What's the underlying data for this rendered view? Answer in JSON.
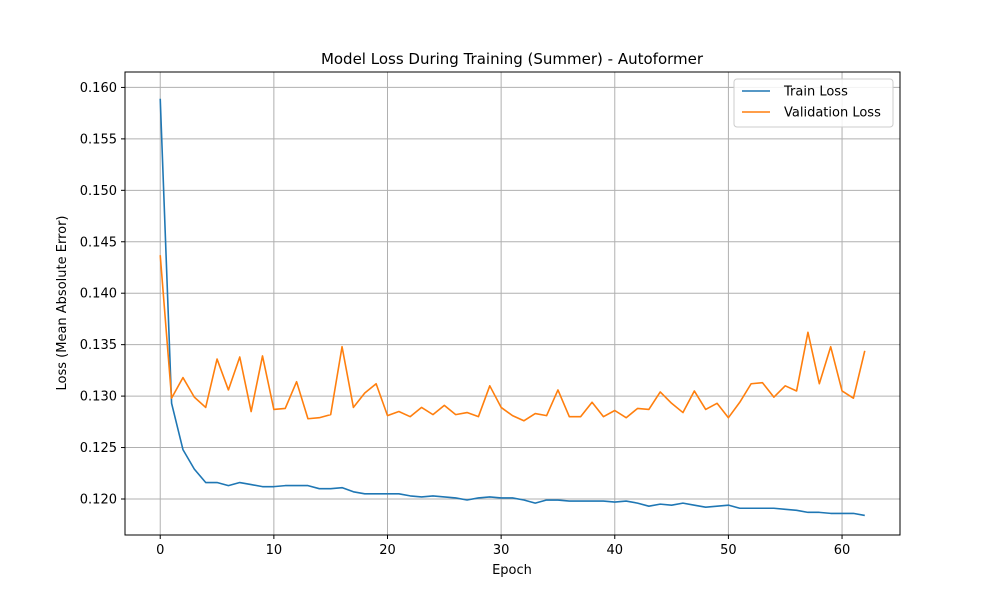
{
  "chart_data": {
    "type": "line",
    "title": "Model Loss During Training (Summer) - Autoformer",
    "xlabel": "Epoch",
    "ylabel": "Loss (Mean Absolute Error)",
    "xlim": [
      -3.1,
      65.1
    ],
    "ylim": [
      0.1165,
      0.1615
    ],
    "xticks": [
      0,
      10,
      20,
      30,
      40,
      50,
      60
    ],
    "yticks": [
      0.12,
      0.125,
      0.13,
      0.135,
      0.14,
      0.145,
      0.15,
      0.155,
      0.16
    ],
    "grid": true,
    "legend_position": "top-right",
    "x": [
      0,
      1,
      2,
      3,
      4,
      5,
      6,
      7,
      8,
      9,
      10,
      11,
      12,
      13,
      14,
      15,
      16,
      17,
      18,
      19,
      20,
      21,
      22,
      23,
      24,
      25,
      26,
      27,
      28,
      29,
      30,
      31,
      32,
      33,
      34,
      35,
      36,
      37,
      38,
      39,
      40,
      41,
      42,
      43,
      44,
      45,
      46,
      47,
      48,
      49,
      50,
      51,
      52,
      53,
      54,
      55,
      56,
      57,
      58,
      59,
      60,
      61,
      62
    ],
    "series": [
      {
        "name": "Train Loss",
        "color": "#1f77b4",
        "values": [
          0.1589,
          0.1293,
          0.1248,
          0.1229,
          0.1216,
          0.1216,
          0.1213,
          0.1216,
          0.1214,
          0.1212,
          0.1212,
          0.1213,
          0.1213,
          0.1213,
          0.121,
          0.121,
          0.1211,
          0.1207,
          0.1205,
          0.1205,
          0.1205,
          0.1205,
          0.1203,
          0.1202,
          0.1203,
          0.1202,
          0.1201,
          0.1199,
          0.1201,
          0.1202,
          0.1201,
          0.1201,
          0.1199,
          0.1196,
          0.1199,
          0.1199,
          0.1198,
          0.1198,
          0.1198,
          0.1198,
          0.1197,
          0.1198,
          0.1196,
          0.1193,
          0.1195,
          0.1194,
          0.1196,
          0.1194,
          0.1192,
          0.1193,
          0.1194,
          0.1191,
          0.1191,
          0.1191,
          0.1191,
          0.119,
          0.1189,
          0.1187,
          0.1187,
          0.1186,
          0.1186,
          0.1186,
          0.1184
        ]
      },
      {
        "name": "Validation Loss",
        "color": "#ff7f0e",
        "values": [
          0.1437,
          0.1298,
          0.1318,
          0.1299,
          0.1289,
          0.1336,
          0.1306,
          0.1338,
          0.1285,
          0.1339,
          0.1287,
          0.1288,
          0.1314,
          0.1278,
          0.1279,
          0.1282,
          0.1348,
          0.1289,
          0.1303,
          0.1312,
          0.1281,
          0.1285,
          0.128,
          0.1289,
          0.1282,
          0.1291,
          0.1282,
          0.1284,
          0.128,
          0.131,
          0.1289,
          0.1281,
          0.1276,
          0.1283,
          0.1281,
          0.1306,
          0.128,
          0.128,
          0.1294,
          0.128,
          0.1286,
          0.1279,
          0.1288,
          0.1287,
          0.1304,
          0.1293,
          0.1284,
          0.1305,
          0.1287,
          0.1293,
          0.1279,
          0.1294,
          0.1312,
          0.1313,
          0.1299,
          0.131,
          0.1305,
          0.1362,
          0.1312,
          0.1348,
          0.1305,
          0.1298,
          0.1344
        ]
      }
    ]
  }
}
